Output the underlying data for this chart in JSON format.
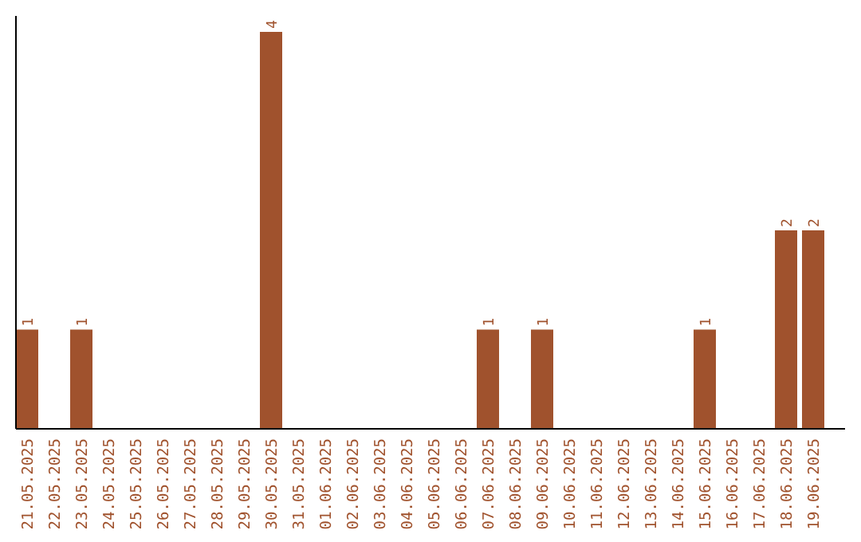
{
  "chart_data": {
    "type": "bar",
    "categories": [
      "21.05.2025",
      "22.05.2025",
      "23.05.2025",
      "24.05.2025",
      "25.05.2025",
      "26.05.2025",
      "27.05.2025",
      "28.05.2025",
      "29.05.2025",
      "30.05.2025",
      "31.05.2025",
      "01.06.2025",
      "02.06.2025",
      "03.06.2025",
      "04.06.2025",
      "05.06.2025",
      "06.06.2025",
      "07.06.2025",
      "08.06.2025",
      "09.06.2025",
      "10.06.2025",
      "11.06.2025",
      "12.06.2025",
      "13.06.2025",
      "14.06.2025",
      "15.06.2025",
      "16.06.2025",
      "17.06.2025",
      "18.06.2025",
      "19.06.2025"
    ],
    "values": [
      1,
      0,
      1,
      0,
      0,
      0,
      0,
      0,
      0,
      4,
      0,
      0,
      0,
      0,
      0,
      0,
      0,
      1,
      0,
      1,
      0,
      0,
      0,
      0,
      0,
      1,
      0,
      0,
      2,
      2
    ],
    "value_labels": [
      "1",
      null,
      "1",
      null,
      null,
      null,
      null,
      null,
      null,
      "4",
      null,
      null,
      null,
      null,
      null,
      null,
      null,
      "1",
      null,
      "1",
      null,
      null,
      null,
      null,
      null,
      "1",
      null,
      null,
      "2",
      "2"
    ],
    "color": "#a0522d"
  }
}
